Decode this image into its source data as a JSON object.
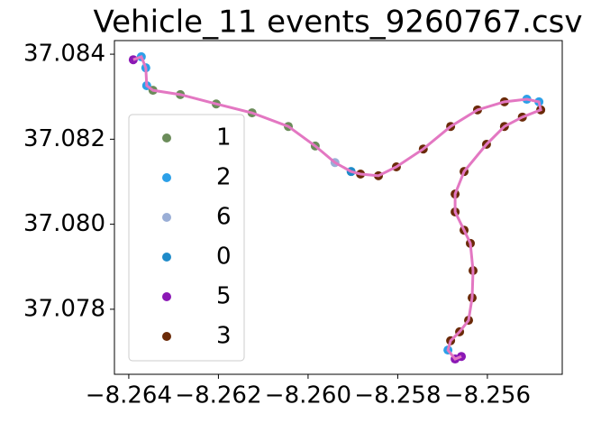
{
  "chart_data": {
    "type": "scatter",
    "title": "Vehicle_11 events_9260767.csv",
    "x": [
      -8.2639,
      -8.26372,
      -8.26362,
      -8.2636,
      -8.26346,
      -8.26285,
      -8.26205,
      -8.26125,
      -8.26044,
      -8.25984,
      -8.2594,
      -8.25904,
      -8.25883,
      -8.25843,
      -8.25803,
      -8.25743,
      -8.25682,
      -8.25622,
      -8.25562,
      -8.25512,
      -8.25485,
      -8.25481,
      -8.25522,
      -8.25562,
      -8.25602,
      -8.25652,
      -8.25672,
      -8.25672,
      -8.25652,
      -8.25638,
      -8.25632,
      -8.25634,
      -8.25642,
      -8.25662,
      -8.25682,
      -8.25688,
      -8.25672,
      -8.25658
    ],
    "y": [
      37.08387,
      37.08394,
      37.08368,
      37.08326,
      37.08315,
      37.08305,
      37.08283,
      37.08262,
      37.0823,
      37.08184,
      37.08145,
      37.08124,
      37.08118,
      37.08114,
      37.08135,
      37.08177,
      37.0823,
      37.08269,
      37.08288,
      37.08294,
      37.08288,
      37.08269,
      37.08252,
      37.0823,
      37.08188,
      37.08124,
      37.08071,
      37.08029,
      37.07986,
      37.07955,
      37.07891,
      37.07827,
      37.07774,
      37.07747,
      37.07726,
      37.07704,
      37.07683,
      37.07689
    ],
    "events": [
      "5",
      "2",
      "2",
      "2",
      "1",
      "1",
      "1",
      "1",
      "1",
      "1",
      "6",
      "0",
      "3",
      "3",
      "3",
      "3",
      "3",
      "3",
      "3",
      "2",
      "2",
      "3",
      "3",
      "3",
      "3",
      "3",
      "3",
      "3",
      "3",
      "3",
      "3",
      "3",
      "3",
      "3",
      "3",
      "2",
      "5",
      "5"
    ],
    "series": [
      {
        "name": "1",
        "color": "#6b8c5a"
      },
      {
        "name": "2",
        "color": "#2ca0e8"
      },
      {
        "name": "6",
        "color": "#9aaed6"
      },
      {
        "name": "0",
        "color": "#1f8bc9"
      },
      {
        "name": "5",
        "color": "#8b18b5"
      },
      {
        "name": "3",
        "color": "#6b2a08"
      }
    ],
    "line_color": "#e377c2",
    "xlim": [
      -8.26432,
      -8.25433
    ],
    "ylim": [
      37.07647,
      37.08432
    ],
    "xticks": [
      {
        "value": -8.264,
        "label": "−8.264"
      },
      {
        "value": -8.262,
        "label": "−8.262"
      },
      {
        "value": -8.26,
        "label": "−8.260"
      },
      {
        "value": -8.258,
        "label": "−8.258"
      },
      {
        "value": -8.256,
        "label": "−8.256"
      }
    ],
    "yticks": [
      37.078,
      {
        "value": 37.08,
        "label": "37.080"
      },
      37.082,
      37.084
    ],
    "legend": "left"
  }
}
